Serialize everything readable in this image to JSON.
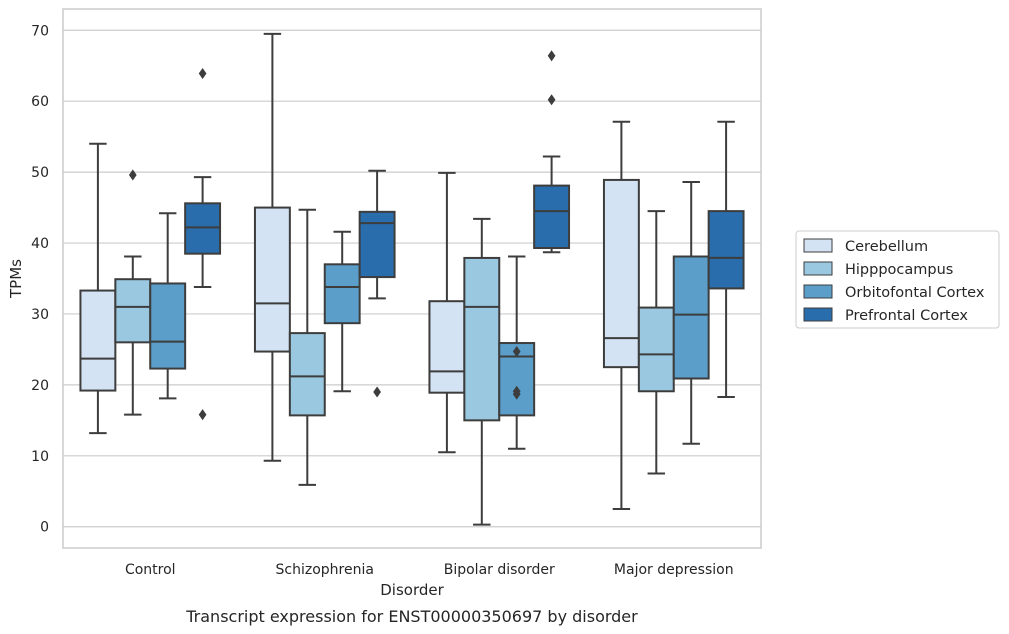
{
  "chart_data": {
    "type": "box",
    "xlabel": "Disorder",
    "ylabel": "TPMs",
    "caption": "Transcript expression for ENST00000350697 by disorder",
    "ylim": [
      -3,
      73
    ],
    "yticks": [
      0,
      10,
      20,
      30,
      40,
      50,
      60,
      70
    ],
    "grid": "horizontal",
    "legend_position": "right",
    "categories": [
      "Control",
      "Schizophrenia",
      "Bipolar disorder",
      "Major depression"
    ],
    "series": [
      {
        "name": "Cerebellum",
        "color": "#d3e3f3",
        "boxes": [
          {
            "whisker_low": 13.2,
            "q1": 19.2,
            "median": 23.7,
            "q3": 33.3,
            "whisker_high": 54.0,
            "outliers": []
          },
          {
            "whisker_low": 9.3,
            "q1": 24.7,
            "median": 31.5,
            "q3": 45.0,
            "whisker_high": 69.5,
            "outliers": []
          },
          {
            "whisker_low": 10.5,
            "q1": 18.9,
            "median": 21.9,
            "q3": 31.8,
            "whisker_high": 49.9,
            "outliers": []
          },
          {
            "whisker_low": 2.5,
            "q1": 22.5,
            "median": 26.6,
            "q3": 48.9,
            "whisker_high": 57.1,
            "outliers": []
          }
        ]
      },
      {
        "name": "Hipppocampus",
        "color": "#9ac8e0",
        "boxes": [
          {
            "whisker_low": 15.8,
            "q1": 26.0,
            "median": 31.0,
            "q3": 34.9,
            "whisker_high": 38.1,
            "outliers": [
              49.6
            ]
          },
          {
            "whisker_low": 5.9,
            "q1": 15.7,
            "median": 21.2,
            "q3": 27.3,
            "whisker_high": 44.7,
            "outliers": []
          },
          {
            "whisker_low": 0.3,
            "q1": 15.0,
            "median": 31.0,
            "q3": 37.9,
            "whisker_high": 43.4,
            "outliers": []
          },
          {
            "whisker_low": 7.5,
            "q1": 19.1,
            "median": 24.3,
            "q3": 30.9,
            "whisker_high": 44.5,
            "outliers": []
          }
        ]
      },
      {
        "name": "Orbitofontal Cortex",
        "color": "#5a9ec9",
        "boxes": [
          {
            "whisker_low": 18.1,
            "q1": 22.3,
            "median": 26.1,
            "q3": 34.3,
            "whisker_high": 44.2,
            "outliers": []
          },
          {
            "whisker_low": 19.1,
            "q1": 28.7,
            "median": 33.8,
            "q3": 37.0,
            "whisker_high": 41.6,
            "outliers": []
          },
          {
            "whisker_low": 11.0,
            "q1": 15.7,
            "median": 24.0,
            "q3": 25.9,
            "whisker_high": 38.1,
            "outliers": [
              24.7,
              19.1,
              18.7
            ]
          },
          {
            "whisker_low": 11.7,
            "q1": 20.9,
            "median": 29.9,
            "q3": 38.1,
            "whisker_high": 48.6,
            "outliers": []
          }
        ]
      },
      {
        "name": "Prefrontal Cortex",
        "color": "#2a6dac",
        "boxes": [
          {
            "whisker_low": 33.8,
            "q1": 38.5,
            "median": 42.2,
            "q3": 45.6,
            "whisker_high": 49.3,
            "outliers": [
              63.9,
              15.8
            ]
          },
          {
            "whisker_low": 32.2,
            "q1": 35.2,
            "median": 42.8,
            "q3": 44.4,
            "whisker_high": 50.2,
            "outliers": [
              19.0
            ]
          },
          {
            "whisker_low": 38.7,
            "q1": 39.3,
            "median": 44.5,
            "q3": 48.1,
            "whisker_high": 52.2,
            "outliers": [
              60.2,
              66.4
            ]
          },
          {
            "whisker_low": 18.3,
            "q1": 33.6,
            "median": 37.9,
            "q3": 44.5,
            "whisker_high": 57.1,
            "outliers": []
          }
        ]
      }
    ]
  }
}
